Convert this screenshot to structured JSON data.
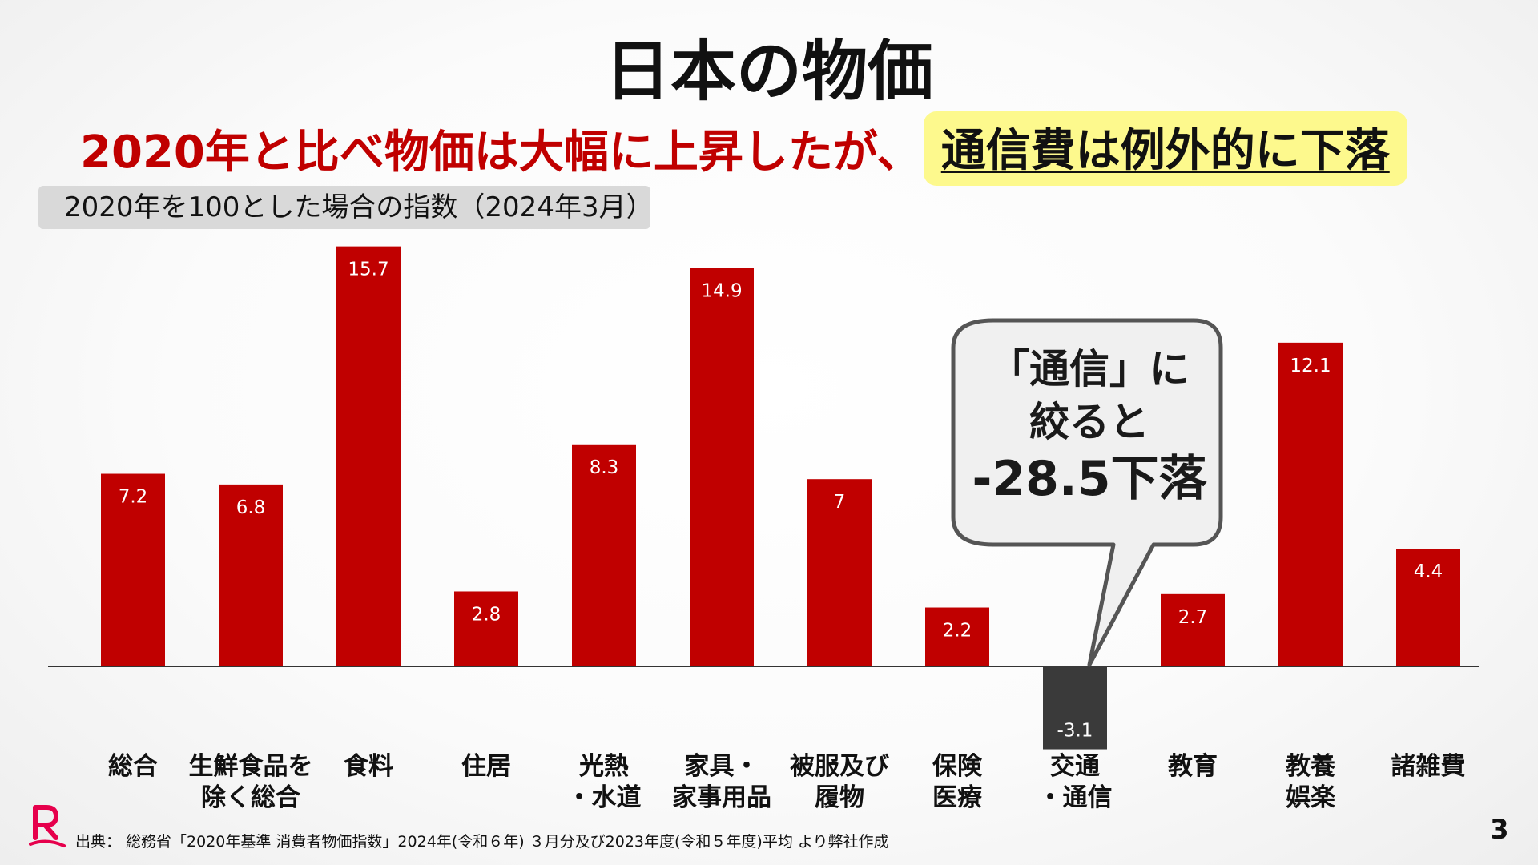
{
  "title": "日本の物価",
  "subtitle": {
    "main": "2020年と比べ物価は大幅に上昇したが、",
    "highlight": "通信費は例外的に下落"
  },
  "index_note": "2020年を100とした場合の指数（2024年3月）",
  "callout": {
    "line1": "「通信」に",
    "line2": "絞ると",
    "line3": "-28.5下落"
  },
  "source": "出典： 総務省「2020年基準 消費者物価指数」2024年(令和６年) ３月分及び2023年度(令和５年度)平均 より弊社作成",
  "page_number": "3",
  "colors": {
    "bar_positive": "#c00000",
    "bar_negative": "#3a3a3a",
    "highlight_bg": "#fdf98d",
    "subtitle_red": "#c00000",
    "logo": "#e6004c"
  },
  "chart_data": {
    "type": "bar",
    "categories": [
      "総合",
      "生鮮食品を\n除く総合",
      "食料",
      "住居",
      "光熱\n・水道",
      "家具・\n家事用品",
      "被服及び\n履物",
      "保険\n医療",
      "交通\n・通信",
      "教育",
      "教養\n娯楽",
      "諸雑費"
    ],
    "values": [
      7.2,
      6.8,
      15.7,
      2.8,
      8.3,
      14.9,
      7,
      2.2,
      -3.1,
      2.7,
      12.1,
      4.4
    ],
    "data_labels": [
      "7.2",
      "6.8",
      "15.7",
      "2.8",
      "8.3",
      "14.9",
      "7",
      "2.2",
      "-3.1",
      "2.7",
      "12.1",
      "4.4"
    ],
    "title": "日本の物価",
    "xlabel": "",
    "ylabel": "",
    "ylim": [
      -3.1,
      15.7
    ],
    "grid": false,
    "legend": "none"
  }
}
